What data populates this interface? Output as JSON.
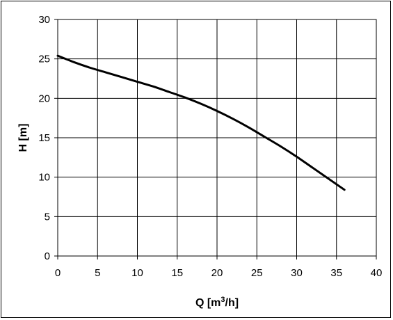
{
  "chart_data": {
    "type": "line",
    "title": "",
    "xlabel_main": "Q [m",
    "xlabel_sup": "3",
    "xlabel_tail": "/h]",
    "ylabel": "H [m]",
    "xlim": [
      0,
      40
    ],
    "ylim": [
      0,
      30
    ],
    "xticks": [
      0,
      5,
      10,
      15,
      20,
      25,
      30,
      35,
      40
    ],
    "yticks": [
      0,
      5,
      10,
      15,
      20,
      25,
      30
    ],
    "grid": true,
    "series": [
      {
        "x": [
          0,
          2,
          4,
          6,
          8,
          10,
          12,
          14,
          16,
          18,
          20,
          22,
          24,
          26,
          28,
          30,
          32,
          34,
          36
        ],
        "y": [
          25.4,
          24.6,
          23.9,
          23.3,
          22.7,
          22.1,
          21.5,
          20.8,
          20.1,
          19.3,
          18.4,
          17.4,
          16.3,
          15.1,
          13.9,
          12.6,
          11.2,
          9.8,
          8.4
        ],
        "color": "#000000"
      }
    ]
  }
}
